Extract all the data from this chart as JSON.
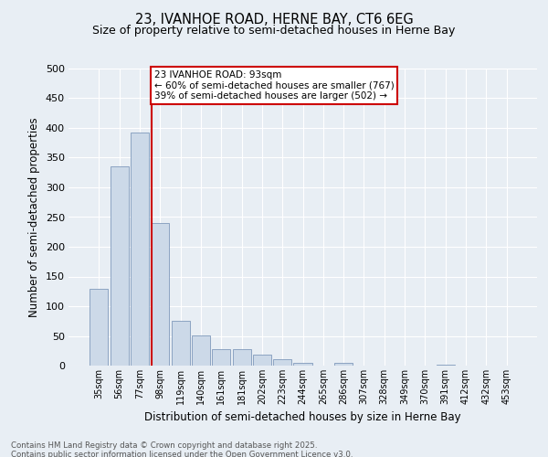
{
  "title1": "23, IVANHOE ROAD, HERNE BAY, CT6 6EG",
  "title2": "Size of property relative to semi-detached houses in Herne Bay",
  "xlabel": "Distribution of semi-detached houses by size in Herne Bay",
  "ylabel": "Number of semi-detached properties",
  "bins": [
    "35sqm",
    "56sqm",
    "77sqm",
    "98sqm",
    "119sqm",
    "140sqm",
    "161sqm",
    "181sqm",
    "202sqm",
    "223sqm",
    "244sqm",
    "265sqm",
    "286sqm",
    "307sqm",
    "328sqm",
    "349sqm",
    "370sqm",
    "391sqm",
    "412sqm",
    "432sqm",
    "453sqm"
  ],
  "values": [
    130,
    335,
    393,
    240,
    76,
    51,
    27,
    27,
    19,
    11,
    4,
    0,
    4,
    0,
    0,
    0,
    0,
    2,
    0,
    0,
    0
  ],
  "bar_color": "#ccd9e8",
  "bar_edge_color": "#8099bb",
  "vline_color": "#cc0000",
  "annotation_text": "23 IVANHOE ROAD: 93sqm\n← 60% of semi-detached houses are smaller (767)\n39% of semi-detached houses are larger (502) →",
  "annotation_box_color": "#cc0000",
  "ylim": [
    0,
    500
  ],
  "yticks": [
    0,
    50,
    100,
    150,
    200,
    250,
    300,
    350,
    400,
    450,
    500
  ],
  "footer": "Contains HM Land Registry data © Crown copyright and database right 2025.\nContains public sector information licensed under the Open Government Licence v3.0.",
  "bg_color": "#e8eef4",
  "plot_bg_color": "#e8eef4",
  "grid_color": "#ffffff"
}
